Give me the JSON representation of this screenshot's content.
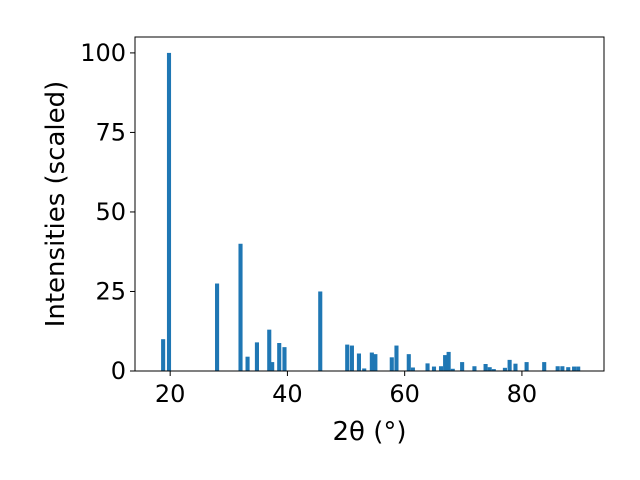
{
  "chart_data": {
    "type": "bar",
    "xlabel": "2θ (°)",
    "ylabel": "Intensities (scaled)",
    "xlim": [
      14,
      94
    ],
    "ylim": [
      0,
      105
    ],
    "xticks": [
      20,
      40,
      60,
      80
    ],
    "yticks": [
      0,
      25,
      50,
      75,
      100
    ],
    "grid": false,
    "bar_color": "#1f77b4",
    "bar_width": 0.7,
    "x": [
      18.8,
      19.8,
      28.0,
      32.0,
      33.2,
      34.8,
      36.9,
      37.4,
      38.6,
      39.5,
      45.6,
      50.2,
      51.0,
      52.2,
      53.1,
      54.4,
      55.0,
      57.8,
      58.6,
      60.7,
      61.4,
      63.9,
      65.0,
      66.2,
      66.9,
      67.5,
      68.2,
      69.8,
      71.9,
      73.8,
      74.5,
      75.2,
      77.1,
      77.9,
      78.9,
      80.8,
      83.8,
      86.1,
      86.9,
      87.9,
      88.9,
      89.6
    ],
    "values": [
      10.0,
      100.0,
      27.5,
      40.0,
      4.5,
      9.0,
      13.0,
      2.8,
      8.8,
      7.5,
      25.0,
      8.3,
      8.0,
      5.5,
      0.8,
      5.8,
      5.3,
      4.3,
      8.0,
      5.3,
      1.1,
      2.4,
      1.4,
      1.5,
      5.0,
      6.0,
      0.7,
      2.8,
      1.5,
      2.2,
      1.2,
      0.6,
      1.0,
      3.5,
      2.3,
      2.8,
      2.8,
      1.5,
      1.5,
      1.2,
      1.4,
      1.4
    ]
  }
}
